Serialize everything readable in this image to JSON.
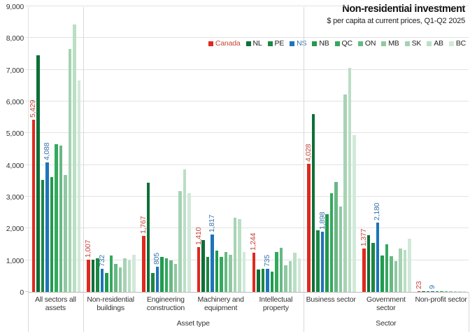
{
  "chart_data": {
    "type": "bar",
    "title": "Non-residential investment",
    "subtitle": "$ per capita at current prices, Q1-Q2 2025",
    "ylim": [
      0,
      9000
    ],
    "ytick_step": 1000,
    "yticks": [
      "0",
      "1,000",
      "2,000",
      "3,000",
      "4,000",
      "5,000",
      "6,000",
      "7,000",
      "8,000",
      "9,000"
    ],
    "grid": true,
    "legend_position": "top-right",
    "categories": [
      "All sectors all assets",
      "Non-residential buildings",
      "Engineering construction",
      "Machinery and equipment",
      "Intellectual property",
      "Business sector",
      "Government sector",
      "Non-profit sector"
    ],
    "sections": [
      {
        "label": "",
        "span": [
          0,
          0
        ]
      },
      {
        "label": "Asset type",
        "span": [
          1,
          4
        ]
      },
      {
        "label": "Sector",
        "span": [
          5,
          7
        ]
      }
    ],
    "series": [
      {
        "name": "Canada",
        "color": "#e0291e",
        "text_color": "#c8453b",
        "show_labels": true,
        "values": [
          5429,
          1007,
          1767,
          1410,
          1244,
          4028,
          1377,
          23
        ]
      },
      {
        "name": "NL",
        "color": "#0e6f37",
        "show_labels": false,
        "values": [
          7450,
          1020,
          3450,
          1630,
          700,
          5600,
          1790,
          15
        ]
      },
      {
        "name": "PE",
        "color": "#1b8843",
        "show_labels": false,
        "values": [
          3520,
          1050,
          590,
          1110,
          725,
          1940,
          1535,
          10
        ]
      },
      {
        "name": "NS",
        "color": "#1e74ba",
        "text_color": "#3a74b0",
        "show_labels": true,
        "values": [
          4088,
          732,
          805,
          1817,
          735,
          1898,
          2180,
          9
        ]
      },
      {
        "name": "NB",
        "color": "#1f9b4d",
        "show_labels": false,
        "values": [
          3620,
          590,
          1110,
          1300,
          650,
          2450,
          1145,
          8
        ]
      },
      {
        "name": "QC",
        "color": "#33a95e",
        "show_labels": false,
        "values": [
          4650,
          1150,
          1050,
          1110,
          1260,
          3120,
          1490,
          12
        ]
      },
      {
        "name": "ON",
        "color": "#68b884",
        "show_labels": false,
        "values": [
          4620,
          890,
          1000,
          1255,
          1400,
          3470,
          1130,
          10
        ]
      },
      {
        "name": "MB",
        "color": "#90c8a2",
        "show_labels": false,
        "values": [
          3690,
          780,
          890,
          1180,
          835,
          2690,
          970,
          8
        ]
      },
      {
        "name": "SK",
        "color": "#a5d3b3",
        "show_labels": false,
        "values": [
          7650,
          1060,
          3180,
          2330,
          960,
          6210,
          1365,
          10
        ]
      },
      {
        "name": "AB",
        "color": "#badfc5",
        "show_labels": false,
        "values": [
          8425,
          1000,
          3850,
          2300,
          1240,
          7050,
          1315,
          12
        ]
      },
      {
        "name": "BC",
        "color": "#d2e9d9",
        "show_labels": false,
        "values": [
          6655,
          1180,
          3110,
          1255,
          1055,
          4950,
          1670,
          10
        ]
      }
    ]
  }
}
